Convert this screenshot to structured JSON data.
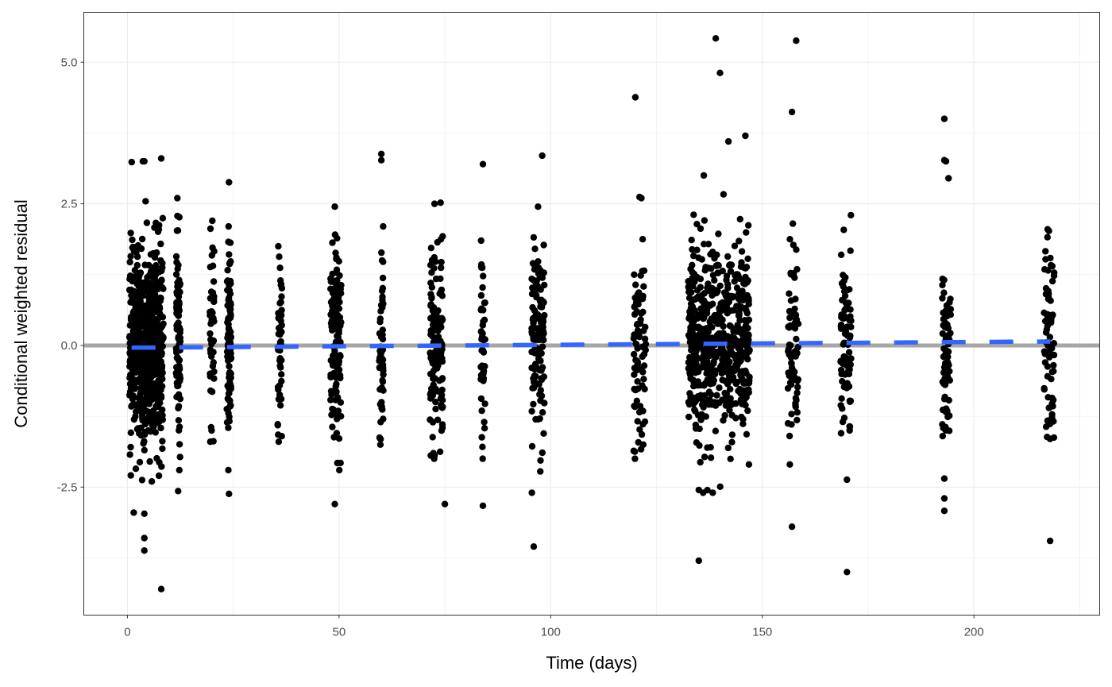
{
  "chart_data": {
    "type": "scatter",
    "title": "",
    "xlabel": "Time (days)",
    "ylabel": "Conditional weighted residual",
    "xlim": [
      -10.3,
      229.7
    ],
    "ylim": [
      -4.76,
      5.88
    ],
    "xticks": [
      0,
      50,
      100,
      150,
      200
    ],
    "xtick_labels": [
      "0",
      "50",
      "100",
      "150",
      "200"
    ],
    "yticks": [
      -2.5,
      0,
      2.5,
      5
    ],
    "ytick_labels": [
      "-2.5",
      "0.0",
      "2.5",
      "5.0"
    ],
    "grid": true,
    "legend": "none",
    "reference_line": {
      "y": 0,
      "color": "#a6a6a6"
    },
    "smooth_line": {
      "color": "#3366ff",
      "style": "dashed",
      "x": [
        1,
        218
      ],
      "y": [
        -0.04,
        0.07
      ]
    },
    "point_color": "#000000",
    "clusters": [
      {
        "x_from": 0.5,
        "x_to": 8.5,
        "n": 650,
        "ymin": -2.4,
        "ymax": 3.25
      },
      {
        "x_from": 11.5,
        "x_to": 12.5,
        "n": 90,
        "ymin": -2.2,
        "ymax": 2.6
      },
      {
        "x_from": 19.5,
        "x_to": 20.5,
        "n": 45,
        "ymin": -1.7,
        "ymax": 2.2
      },
      {
        "x_from": 23.5,
        "x_to": 24.5,
        "n": 100,
        "ymin": -2.2,
        "ymax": 2.1
      },
      {
        "x_from": 35.5,
        "x_to": 36.5,
        "n": 45,
        "ymin": -1.7,
        "ymax": 1.75
      },
      {
        "x_from": 48,
        "x_to": 50.5,
        "n": 130,
        "ymin": -2.2,
        "ymax": 2.45
      },
      {
        "x_from": 59.5,
        "x_to": 60.5,
        "n": 50,
        "ymin": -1.75,
        "ymax": 2.1
      },
      {
        "x_from": 71.5,
        "x_to": 74.5,
        "n": 140,
        "ymin": -2.0,
        "ymax": 2.5
      },
      {
        "x_from": 83.5,
        "x_to": 84.5,
        "n": 45,
        "ymin": -2.0,
        "ymax": 1.85
      },
      {
        "x_from": 95.5,
        "x_to": 98.5,
        "n": 120,
        "ymin": -2.6,
        "ymax": 2.45
      },
      {
        "x_from": 119.5,
        "x_to": 122.5,
        "n": 80,
        "ymin": -2.0,
        "ymax": 2.6
      },
      {
        "x_from": 132.5,
        "x_to": 147,
        "n": 600,
        "ymin": -2.6,
        "ymax": 3.0
      },
      {
        "x_from": 156,
        "x_to": 158.5,
        "n": 70,
        "ymin": -2.1,
        "ymax": 2.15
      },
      {
        "x_from": 168.5,
        "x_to": 171,
        "n": 80,
        "ymin": -1.55,
        "ymax": 2.3
      },
      {
        "x_from": 192.5,
        "x_to": 194.5,
        "n": 70,
        "ymin": -1.6,
        "ymax": 3.25
      },
      {
        "x_from": 216.5,
        "x_to": 219,
        "n": 70,
        "ymin": -1.65,
        "ymax": 2.05
      }
    ],
    "outliers": [
      [
        8,
        -4.3
      ],
      [
        1.5,
        -2.95
      ],
      [
        4,
        -2.97
      ],
      [
        4,
        -3.4
      ],
      [
        4,
        -3.62
      ],
      [
        8,
        3.3
      ],
      [
        4,
        3.25
      ],
      [
        12,
        -2.57
      ],
      [
        24,
        2.88
      ],
      [
        24,
        -2.62
      ],
      [
        49,
        -2.8
      ],
      [
        60,
        3.38
      ],
      [
        60,
        3.27
      ],
      [
        75,
        -2.8
      ],
      [
        74,
        2.52
      ],
      [
        84,
        -2.83
      ],
      [
        84,
        3.2
      ],
      [
        96,
        -3.55
      ],
      [
        98,
        3.35
      ],
      [
        120,
        4.38
      ],
      [
        121,
        2.62
      ],
      [
        139,
        5.42
      ],
      [
        140,
        4.81
      ],
      [
        142,
        3.6
      ],
      [
        146,
        3.7
      ],
      [
        135,
        -3.8
      ],
      [
        136,
        -2.6
      ],
      [
        135,
        -2.55
      ],
      [
        157,
        4.12
      ],
      [
        158,
        5.38
      ],
      [
        157,
        -3.2
      ],
      [
        170,
        -4.0
      ],
      [
        170,
        -2.37
      ],
      [
        193,
        4.0
      ],
      [
        193,
        -2.35
      ],
      [
        193,
        -2.7
      ],
      [
        193,
        -2.92
      ],
      [
        193,
        3.27
      ],
      [
        194,
        2.95
      ],
      [
        218,
        -3.45
      ]
    ]
  }
}
